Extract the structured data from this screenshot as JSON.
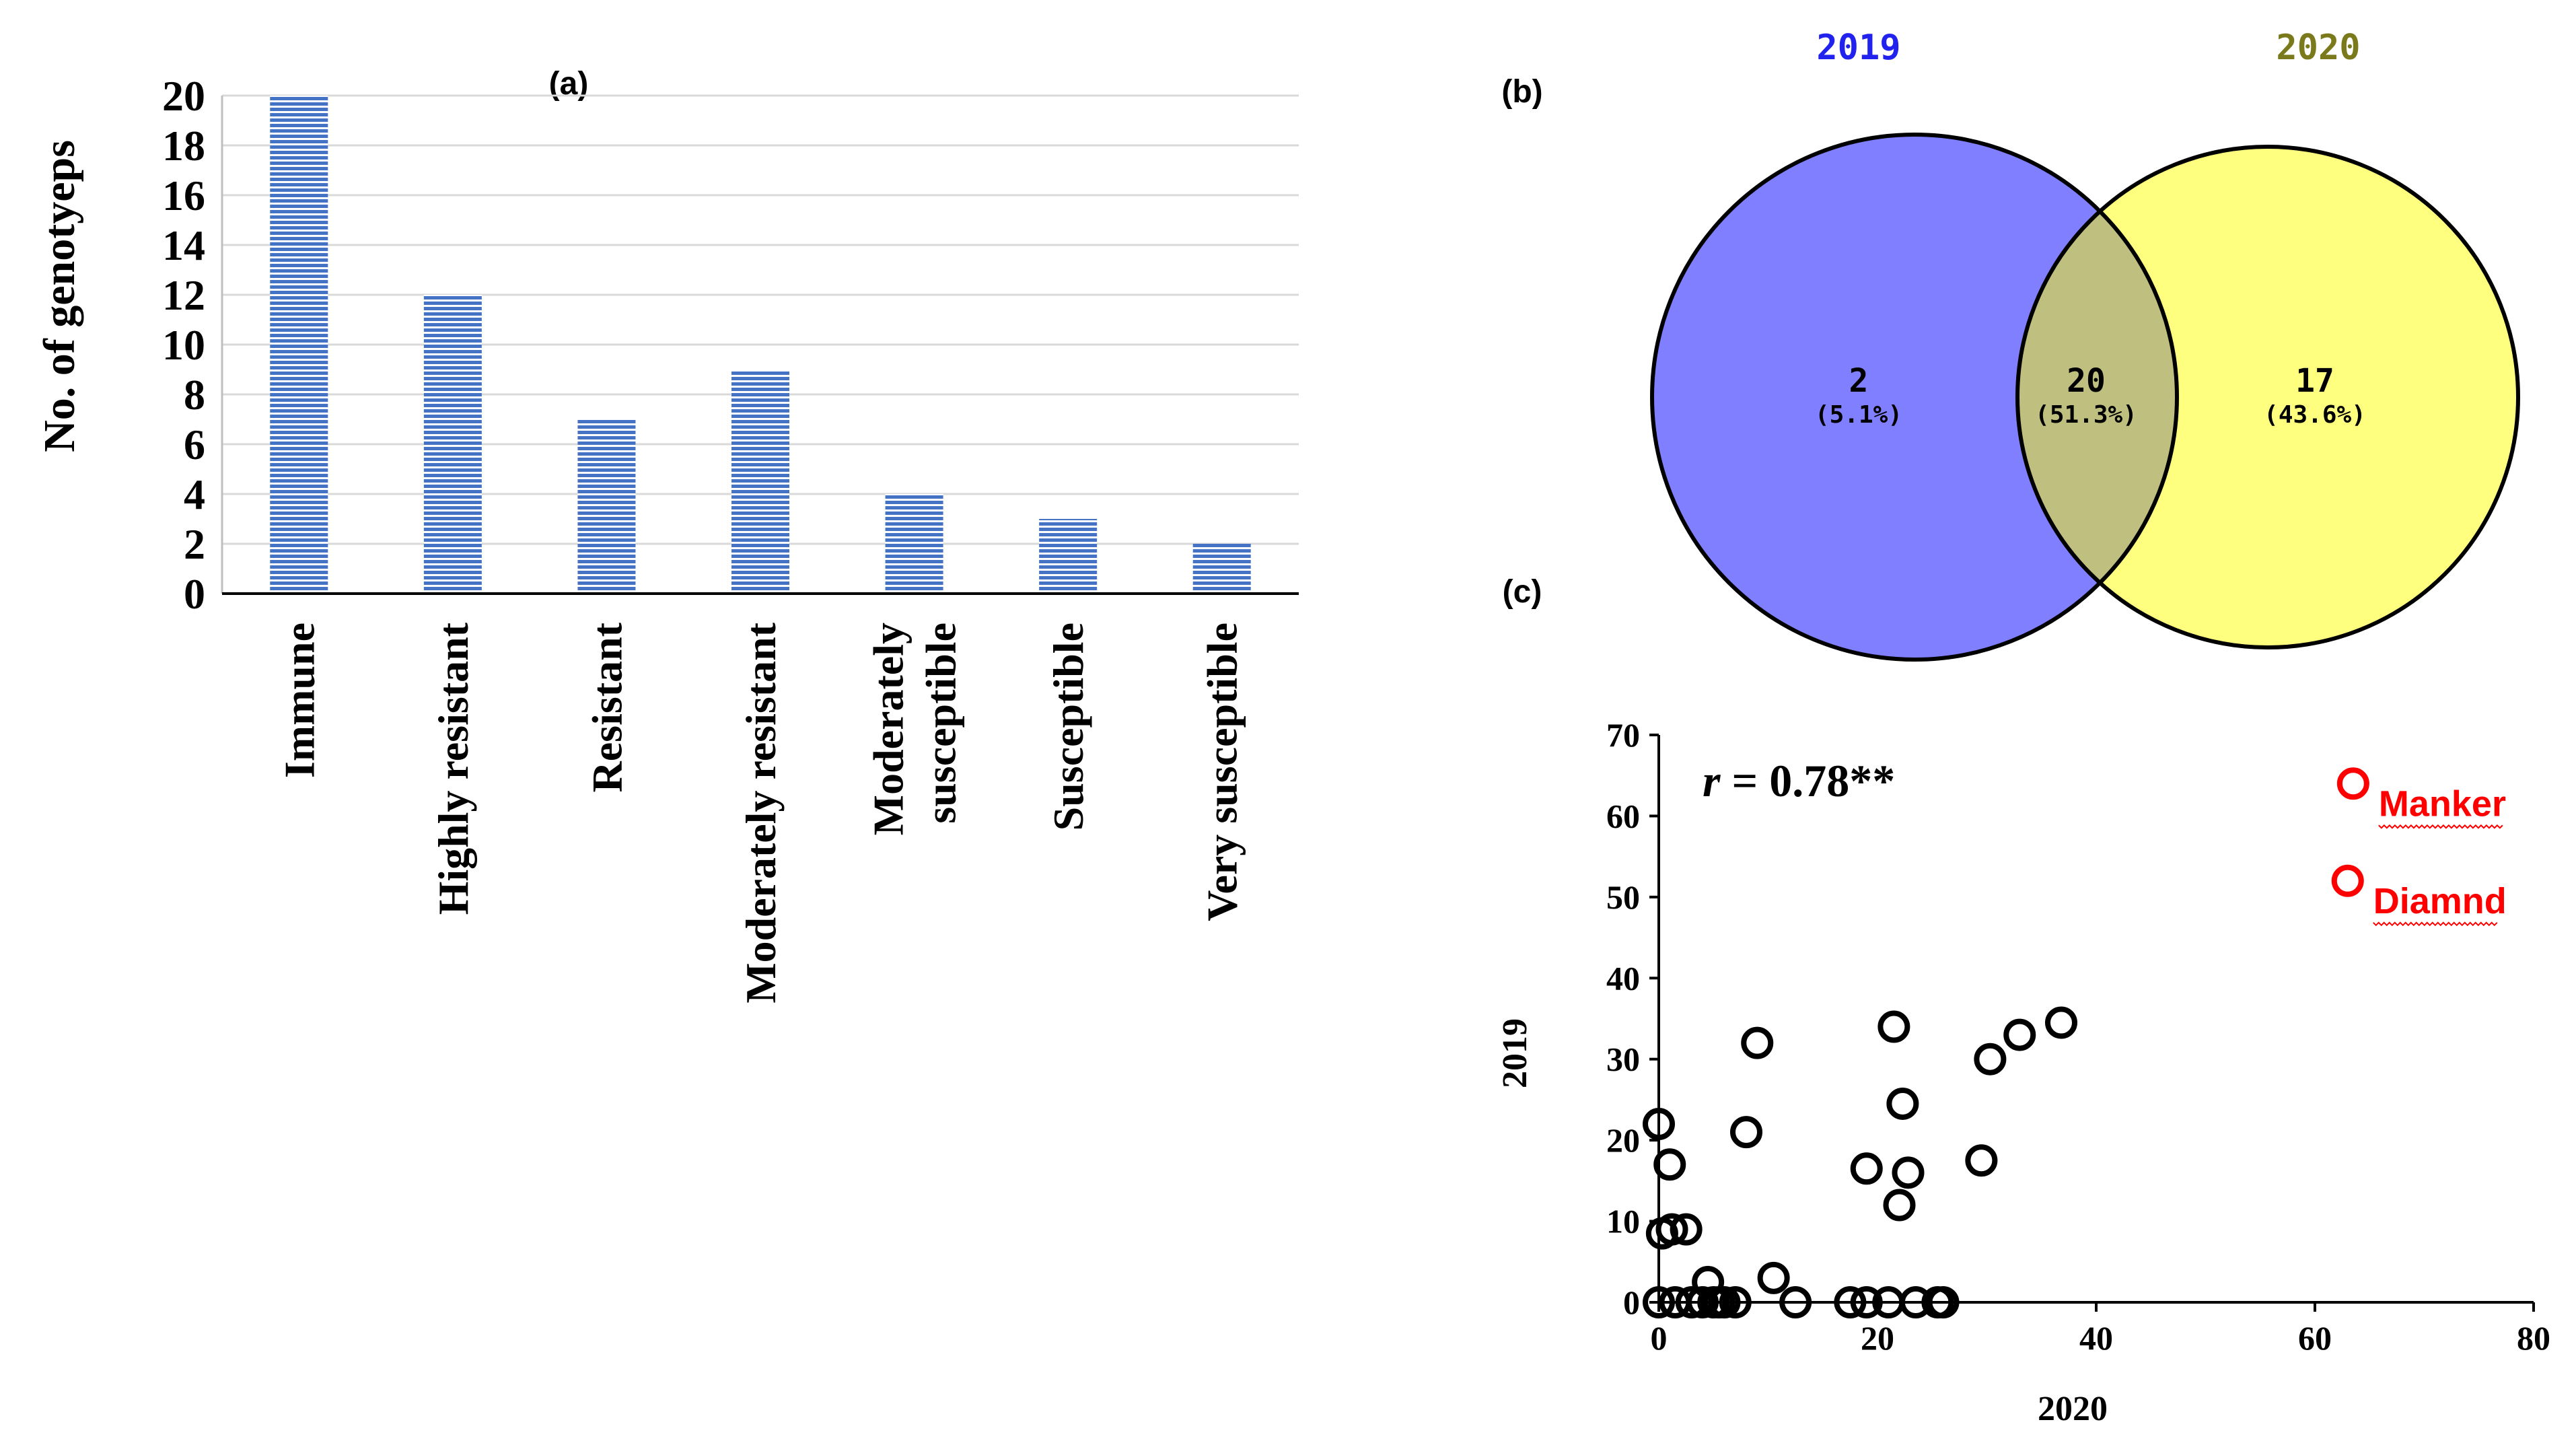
{
  "chart_data": [
    {
      "panel": "(a)",
      "type": "bar",
      "ylabel": "No. of genotyeps",
      "xlabel": "",
      "ylim": [
        0,
        20
      ],
      "yticks": [
        0,
        2,
        4,
        6,
        8,
        10,
        12,
        14,
        16,
        18,
        20
      ],
      "categories": [
        "Immune",
        "Highly resistant",
        "Resistant",
        "Moderately resistant",
        "Moderately susceptible",
        "Susceptible",
        "Very susceptible"
      ],
      "category_lines": [
        [
          "Immune"
        ],
        [
          "Highly resistant"
        ],
        [
          "Resistant"
        ],
        [
          "Moderately resistant"
        ],
        [
          "Moderately",
          "susceptible"
        ],
        [
          "Susceptible"
        ],
        [
          "Very susceptible"
        ]
      ],
      "values": [
        20,
        12,
        7,
        9,
        4,
        3,
        2
      ],
      "grid": true,
      "bar_color": "#4472c4"
    },
    {
      "panel": "(b)",
      "type": "venn",
      "sets": [
        {
          "label": "2019",
          "color": "#7f7fff",
          "label_color": "#2222ee"
        },
        {
          "label": "2020",
          "color": "#ffff7f",
          "label_color": "#7a7a1c"
        }
      ],
      "overlap_color": "#bfbf7f",
      "regions": [
        {
          "name": "2019 only",
          "count": "2",
          "percent": "(5.1%)"
        },
        {
          "name": "both",
          "count": "20",
          "percent": "(51.3%)"
        },
        {
          "name": "2020 only",
          "count": "17",
          "percent": "(43.6%)"
        }
      ]
    },
    {
      "panel": "(c)",
      "type": "scatter",
      "xlabel": "2020",
      "ylabel": "2019",
      "xlim": [
        0,
        80
      ],
      "ylim": [
        0,
        70
      ],
      "xticks": [
        0,
        20,
        40,
        60,
        80
      ],
      "yticks": [
        0,
        10,
        20,
        30,
        40,
        50,
        60,
        70
      ],
      "annotation": {
        "r_symbol": "r",
        "r_text": " = 0.78**"
      },
      "points": [
        {
          "x": 0,
          "y": 22
        },
        {
          "x": 0.3,
          "y": 8.5
        },
        {
          "x": 1,
          "y": 17
        },
        {
          "x": 1.2,
          "y": 9
        },
        {
          "x": 2.5,
          "y": 9
        },
        {
          "x": 4.5,
          "y": 2.5
        },
        {
          "x": 8,
          "y": 21
        },
        {
          "x": 9,
          "y": 32
        },
        {
          "x": 10.5,
          "y": 3
        },
        {
          "x": 19,
          "y": 16.5
        },
        {
          "x": 21.5,
          "y": 34
        },
        {
          "x": 22,
          "y": 12
        },
        {
          "x": 22.3,
          "y": 24.5
        },
        {
          "x": 22.8,
          "y": 16
        },
        {
          "x": 29.5,
          "y": 17.5
        },
        {
          "x": 30.3,
          "y": 30
        },
        {
          "x": 33,
          "y": 33
        },
        {
          "x": 36.8,
          "y": 34.5
        },
        {
          "x": 0,
          "y": 0
        },
        {
          "x": 1.5,
          "y": 0
        },
        {
          "x": 3,
          "y": 0
        },
        {
          "x": 4,
          "y": 0
        },
        {
          "x": 5,
          "y": 0
        },
        {
          "x": 5.5,
          "y": 0
        },
        {
          "x": 6,
          "y": 0
        },
        {
          "x": 7,
          "y": 0
        },
        {
          "x": 12.5,
          "y": 0
        },
        {
          "x": 17.5,
          "y": 0
        },
        {
          "x": 19,
          "y": 0
        },
        {
          "x": 21,
          "y": 0
        },
        {
          "x": 23.5,
          "y": 0
        },
        {
          "x": 25.5,
          "y": 0
        },
        {
          "x": 26,
          "y": 0
        }
      ],
      "highlighted": [
        {
          "x": 63.5,
          "y": 64,
          "label": "Manker",
          "color": "#ff0000"
        },
        {
          "x": 63,
          "y": 52,
          "label": "Diamnd",
          "color": "#ff0000"
        }
      ]
    }
  ]
}
